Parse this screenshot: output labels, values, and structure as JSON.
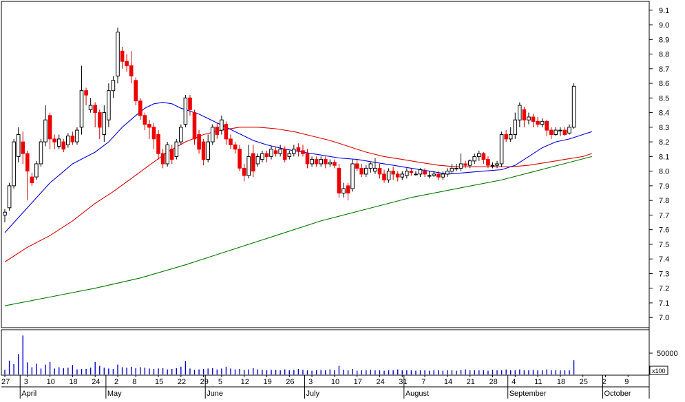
{
  "chart_data": {
    "type": "candlestick",
    "price_axis": {
      "ticks": [
        "7.0",
        "7.1",
        "7.2",
        "7.3",
        "7.4",
        "7.5",
        "7.6",
        "7.7",
        "7.8",
        "7.9",
        "8.0",
        "8.1",
        "8.2",
        "8.3",
        "8.4",
        "8.5",
        "8.6",
        "8.7",
        "8.8",
        "8.9",
        "9.0",
        "9.1"
      ],
      "range": [
        6.94,
        9.16
      ]
    },
    "volume_axis": {
      "tick_label": "50000",
      "tick_value": 500,
      "multiplier_label": "x100",
      "max": 1000
    },
    "x_axis": {
      "day_labels": [
        {
          "i": 0,
          "t": "27"
        },
        {
          "i": 5,
          "t": "3"
        },
        {
          "i": 10,
          "t": "10"
        },
        {
          "i": 15,
          "t": "18"
        },
        {
          "i": 20,
          "t": "24"
        },
        {
          "i": 25,
          "t": "2"
        },
        {
          "i": 29,
          "t": "8"
        },
        {
          "i": 34,
          "t": "15"
        },
        {
          "i": 39,
          "t": "22"
        },
        {
          "i": 44,
          "t": "29"
        },
        {
          "i": 48,
          "t": "5"
        },
        {
          "i": 53,
          "t": "12"
        },
        {
          "i": 58,
          "t": "19"
        },
        {
          "i": 63,
          "t": "26"
        },
        {
          "i": 68,
          "t": "3"
        },
        {
          "i": 73,
          "t": "10"
        },
        {
          "i": 78,
          "t": "17"
        },
        {
          "i": 83,
          "t": "24"
        },
        {
          "i": 88,
          "t": "31"
        },
        {
          "i": 93,
          "t": "7"
        },
        {
          "i": 98,
          "t": "14"
        },
        {
          "i": 103,
          "t": "21"
        },
        {
          "i": 108,
          "t": "28"
        },
        {
          "i": 113,
          "t": "4"
        },
        {
          "i": 118,
          "t": "11"
        },
        {
          "i": 123,
          "t": "18"
        },
        {
          "i": 128,
          "t": "25"
        },
        {
          "i": 133,
          "t": "2"
        },
        {
          "i": 138,
          "t": "9"
        }
      ],
      "month_labels": [
        {
          "i": 4,
          "t": "April"
        },
        {
          "i": 23,
          "t": "May"
        },
        {
          "i": 45,
          "t": "June"
        },
        {
          "i": 67,
          "t": "July"
        },
        {
          "i": 89,
          "t": "August"
        },
        {
          "i": 112,
          "t": "September"
        },
        {
          "i": 133,
          "t": "October"
        }
      ],
      "month_separators": [
        4,
        23,
        45,
        67,
        89,
        112,
        133
      ],
      "n_slots": 141
    },
    "candles": [
      [
        7.7,
        7.72,
        7.65,
        7.74
      ],
      [
        7.75,
        7.9,
        7.73,
        7.92
      ],
      [
        7.9,
        8.2,
        7.88,
        8.22
      ],
      [
        8.1,
        8.25,
        8.06,
        8.3
      ],
      [
        8.2,
        8.12,
        8.05,
        8.27
      ],
      [
        8.12,
        8.0,
        7.8,
        8.14
      ],
      [
        7.96,
        7.92,
        7.9,
        7.99
      ],
      [
        7.96,
        8.05,
        7.94,
        8.07
      ],
      [
        8.05,
        8.2,
        8.03,
        8.22
      ],
      [
        8.2,
        8.35,
        8.17,
        8.45
      ],
      [
        8.38,
        8.22,
        8.15,
        8.4
      ],
      [
        8.22,
        8.2,
        8.15,
        8.25
      ],
      [
        8.17,
        8.22,
        8.15,
        8.25
      ],
      [
        8.2,
        8.15,
        8.13,
        8.22
      ],
      [
        8.18,
        8.24,
        8.16,
        8.26
      ],
      [
        8.24,
        8.2,
        8.18,
        8.27
      ],
      [
        8.2,
        8.28,
        8.18,
        8.3
      ],
      [
        8.3,
        8.55,
        8.25,
        8.72
      ],
      [
        8.55,
        8.52,
        8.45,
        8.57
      ],
      [
        8.42,
        8.45,
        8.4,
        8.5
      ],
      [
        8.45,
        8.4,
        8.3,
        8.47
      ],
      [
        8.4,
        8.3,
        8.22,
        8.42
      ],
      [
        8.25,
        8.4,
        8.2,
        8.45
      ],
      [
        8.35,
        8.55,
        8.3,
        8.6
      ],
      [
        8.55,
        8.62,
        8.5,
        8.65
      ],
      [
        8.65,
        8.95,
        8.6,
        8.98
      ],
      [
        8.82,
        8.75,
        8.7,
        8.85
      ],
      [
        8.75,
        8.72,
        8.68,
        8.8
      ],
      [
        8.72,
        8.65,
        8.6,
        8.82
      ],
      [
        8.62,
        8.48,
        8.45,
        8.64
      ],
      [
        8.48,
        8.38,
        8.35,
        8.5
      ],
      [
        8.38,
        8.32,
        8.28,
        8.4
      ],
      [
        8.32,
        8.3,
        8.22,
        8.35
      ],
      [
        8.3,
        8.22,
        8.15,
        8.33
      ],
      [
        8.25,
        8.12,
        8.08,
        8.28
      ],
      [
        8.12,
        8.05,
        8.02,
        8.15
      ],
      [
        8.05,
        8.18,
        8.03,
        8.2
      ],
      [
        8.15,
        8.08,
        8.05,
        8.18
      ],
      [
        8.1,
        8.2,
        8.08,
        8.22
      ],
      [
        8.2,
        8.3,
        8.18,
        8.32
      ],
      [
        8.32,
        8.5,
        8.3,
        8.52
      ],
      [
        8.5,
        8.42,
        8.38,
        8.52
      ],
      [
        8.4,
        8.22,
        8.18,
        8.42
      ],
      [
        8.25,
        8.15,
        8.12,
        8.28
      ],
      [
        8.2,
        8.08,
        8.04,
        8.22
      ],
      [
        8.08,
        8.2,
        8.06,
        8.25
      ],
      [
        8.2,
        8.3,
        8.18,
        8.32
      ],
      [
        8.3,
        8.25,
        8.22,
        8.33
      ],
      [
        8.28,
        8.35,
        8.25,
        8.38
      ],
      [
        8.32,
        8.22,
        8.18,
        8.34
      ],
      [
        8.22,
        8.18,
        8.15,
        8.25
      ],
      [
        8.18,
        8.15,
        8.12,
        8.2
      ],
      [
        8.15,
        8.02,
        8.0,
        8.18
      ],
      [
        8.02,
        7.97,
        7.93,
        8.05
      ],
      [
        7.97,
        8.1,
        7.95,
        8.18
      ],
      [
        8.12,
        8.0,
        7.96,
        8.18
      ],
      [
        8.05,
        8.1,
        8.03,
        8.12
      ],
      [
        8.08,
        8.12,
        8.06,
        8.14
      ],
      [
        8.12,
        8.1,
        8.06,
        8.14
      ],
      [
        8.1,
        8.15,
        8.08,
        8.17
      ],
      [
        8.14,
        8.12,
        8.1,
        8.17
      ],
      [
        8.12,
        8.15,
        8.1,
        8.18
      ],
      [
        8.15,
        8.08,
        8.06,
        8.17
      ],
      [
        8.1,
        8.12,
        8.08,
        8.14
      ],
      [
        8.12,
        8.15,
        8.1,
        8.18
      ],
      [
        8.16,
        8.14,
        8.1,
        8.19
      ],
      [
        8.14,
        8.12,
        8.1,
        8.18
      ],
      [
        8.12,
        8.05,
        8.02,
        8.15
      ],
      [
        8.05,
        8.08,
        8.03,
        8.1
      ],
      [
        8.08,
        8.05,
        8.03,
        8.1
      ],
      [
        8.05,
        8.08,
        8.03,
        8.1
      ],
      [
        8.08,
        8.05,
        8.02,
        8.1
      ],
      [
        8.05,
        8.06,
        8.03,
        8.08
      ],
      [
        8.06,
        8.04,
        8.02,
        8.08
      ],
      [
        8.02,
        7.85,
        7.82,
        8.05
      ],
      [
        7.85,
        7.88,
        7.82,
        7.92
      ],
      [
        7.9,
        7.85,
        7.8,
        7.92
      ],
      [
        7.88,
        8.05,
        7.86,
        8.08
      ],
      [
        8.05,
        8.02,
        8.0,
        8.08
      ],
      [
        8.02,
        7.98,
        7.96,
        8.05
      ],
      [
        7.98,
        8.02,
        7.96,
        8.04
      ],
      [
        8.02,
        8.05,
        7.99,
        8.06
      ],
      [
        8.0,
        8.02,
        7.98,
        8.09
      ],
      [
        8.02,
        7.98,
        7.95,
        8.05
      ],
      [
        7.98,
        7.94,
        7.92,
        8.01
      ],
      [
        7.94,
        8.0,
        7.92,
        8.02
      ],
      [
        8.0,
        7.98,
        7.94,
        8.03
      ],
      [
        7.98,
        7.96,
        7.93,
        8.0
      ],
      [
        7.96,
        7.98,
        7.94,
        8.0
      ],
      [
        7.97,
        8.0,
        7.95,
        8.02
      ],
      [
        8.0,
        7.99,
        7.97,
        8.02
      ],
      [
        7.98,
        7.98,
        7.97,
        8.0
      ],
      [
        7.98,
        8.01,
        7.96,
        8.02
      ],
      [
        8.0,
        7.98,
        7.96,
        8.02
      ],
      [
        7.97,
        7.97,
        7.95,
        8.0
      ],
      [
        7.97,
        7.98,
        7.96,
        8.0
      ],
      [
        7.98,
        7.96,
        7.94,
        8.0
      ],
      [
        7.96,
        7.98,
        7.94,
        8.0
      ],
      [
        7.98,
        8.0,
        7.96,
        8.02
      ],
      [
        8.0,
        8.02,
        7.98,
        8.05
      ],
      [
        8.02,
        8.02,
        8.0,
        8.05
      ],
      [
        8.02,
        8.05,
        8.0,
        8.12
      ],
      [
        8.05,
        8.04,
        8.02,
        8.07
      ],
      [
        8.04,
        8.07,
        8.02,
        8.08
      ],
      [
        8.07,
        8.1,
        8.05,
        8.12
      ],
      [
        8.1,
        8.12,
        8.07,
        8.14
      ],
      [
        8.12,
        8.08,
        8.05,
        8.13
      ],
      [
        8.08,
        8.04,
        8.02,
        8.1
      ],
      [
        8.04,
        8.04,
        8.02,
        8.06
      ],
      [
        8.04,
        8.05,
        8.02,
        8.07
      ],
      [
        8.05,
        8.25,
        8.03,
        8.27
      ],
      [
        8.25,
        8.22,
        8.2,
        8.28
      ],
      [
        8.22,
        8.25,
        8.2,
        8.3
      ],
      [
        8.25,
        8.35,
        8.22,
        8.4
      ],
      [
        8.35,
        8.45,
        8.3,
        8.47
      ],
      [
        8.42,
        8.35,
        8.3,
        8.44
      ],
      [
        8.35,
        8.37,
        8.32,
        8.4
      ],
      [
        8.37,
        8.34,
        8.3,
        8.39
      ],
      [
        8.34,
        8.32,
        8.3,
        8.37
      ],
      [
        8.32,
        8.34,
        8.3,
        8.36
      ],
      [
        8.34,
        8.28,
        8.24,
        8.35
      ],
      [
        8.28,
        8.25,
        8.22,
        8.3
      ],
      [
        8.25,
        8.28,
        8.24,
        8.3
      ],
      [
        8.28,
        8.28,
        8.24,
        8.3
      ],
      [
        8.28,
        8.25,
        8.24,
        8.3
      ],
      [
        8.26,
        8.3,
        8.25,
        8.32
      ],
      [
        8.3,
        8.58,
        8.29,
        8.6
      ]
    ],
    "volume": [
      120,
      330,
      250,
      480,
      900,
      290,
      180,
      260,
      150,
      240,
      300,
      150,
      180,
      160,
      170,
      230,
      130,
      140,
      140,
      170,
      300,
      210,
      170,
      150,
      140,
      240,
      180,
      170,
      190,
      160,
      180,
      170,
      150,
      140,
      150,
      160,
      130,
      140,
      160,
      190,
      320,
      150,
      120,
      130,
      140,
      150,
      160,
      130,
      150,
      190,
      150,
      130,
      140,
      120,
      130,
      160,
      130,
      120,
      110,
      120,
      120,
      110,
      130,
      110,
      120,
      140,
      120,
      110,
      100,
      110,
      120,
      110,
      130,
      110,
      210,
      120,
      110,
      140,
      100,
      110,
      110,
      120,
      110,
      110,
      100,
      110,
      110,
      130,
      110,
      110,
      110,
      100,
      110,
      110,
      100,
      110,
      110,
      100,
      110,
      110,
      100,
      120,
      130,
      110,
      110,
      110,
      110,
      100,
      120,
      110,
      110,
      130,
      110,
      110,
      130,
      110,
      110,
      120,
      110,
      110,
      130,
      110,
      110,
      110,
      110,
      110,
      340
    ],
    "ma_blue": [
      [
        0,
        7.58
      ],
      [
        5,
        7.75
      ],
      [
        10,
        7.92
      ],
      [
        15,
        8.05
      ],
      [
        20,
        8.13
      ],
      [
        23,
        8.2
      ],
      [
        26,
        8.3
      ],
      [
        29,
        8.38
      ],
      [
        31,
        8.43
      ],
      [
        33,
        8.46
      ],
      [
        35,
        8.47
      ],
      [
        37,
        8.46
      ],
      [
        39,
        8.43
      ],
      [
        41,
        8.41
      ],
      [
        43,
        8.39
      ],
      [
        45,
        8.36
      ],
      [
        47,
        8.33
      ],
      [
        49,
        8.3
      ],
      [
        51,
        8.27
      ],
      [
        53,
        8.24
      ],
      [
        55,
        8.21
      ],
      [
        58,
        8.18
      ],
      [
        62,
        8.15
      ],
      [
        66,
        8.13
      ],
      [
        70,
        8.11
      ],
      [
        74,
        8.09
      ],
      [
        78,
        8.08
      ],
      [
        82,
        8.06
      ],
      [
        86,
        8.04
      ],
      [
        90,
        8.02
      ],
      [
        94,
        8.0
      ],
      [
        98,
        7.98
      ],
      [
        102,
        7.99
      ],
      [
        106,
        8.0
      ],
      [
        110,
        8.01
      ],
      [
        113,
        8.04
      ],
      [
        116,
        8.1
      ],
      [
        119,
        8.16
      ],
      [
        122,
        8.2
      ],
      [
        125,
        8.22
      ],
      [
        128,
        8.25
      ],
      [
        130,
        8.27
      ]
    ],
    "ma_red": [
      [
        0,
        7.38
      ],
      [
        5,
        7.48
      ],
      [
        10,
        7.56
      ],
      [
        15,
        7.66
      ],
      [
        20,
        7.78
      ],
      [
        24,
        7.86
      ],
      [
        28,
        7.95
      ],
      [
        32,
        8.04
      ],
      [
        36,
        8.13
      ],
      [
        40,
        8.2
      ],
      [
        44,
        8.25
      ],
      [
        48,
        8.28
      ],
      [
        52,
        8.3
      ],
      [
        56,
        8.3
      ],
      [
        60,
        8.29
      ],
      [
        64,
        8.27
      ],
      [
        68,
        8.24
      ],
      [
        72,
        8.21
      ],
      [
        76,
        8.17
      ],
      [
        80,
        8.13
      ],
      [
        84,
        8.1
      ],
      [
        88,
        8.08
      ],
      [
        92,
        8.06
      ],
      [
        96,
        8.04
      ],
      [
        100,
        8.03
      ],
      [
        104,
        8.03
      ],
      [
        108,
        8.03
      ],
      [
        112,
        8.03
      ],
      [
        116,
        8.04
      ],
      [
        120,
        8.06
      ],
      [
        124,
        8.08
      ],
      [
        128,
        8.1
      ],
      [
        130,
        8.12
      ]
    ],
    "ma_green": [
      [
        0,
        7.08
      ],
      [
        10,
        7.14
      ],
      [
        20,
        7.2
      ],
      [
        30,
        7.27
      ],
      [
        40,
        7.36
      ],
      [
        50,
        7.46
      ],
      [
        60,
        7.56
      ],
      [
        70,
        7.66
      ],
      [
        80,
        7.74
      ],
      [
        90,
        7.82
      ],
      [
        100,
        7.88
      ],
      [
        110,
        7.94
      ],
      [
        120,
        8.02
      ],
      [
        130,
        8.1
      ]
    ]
  }
}
